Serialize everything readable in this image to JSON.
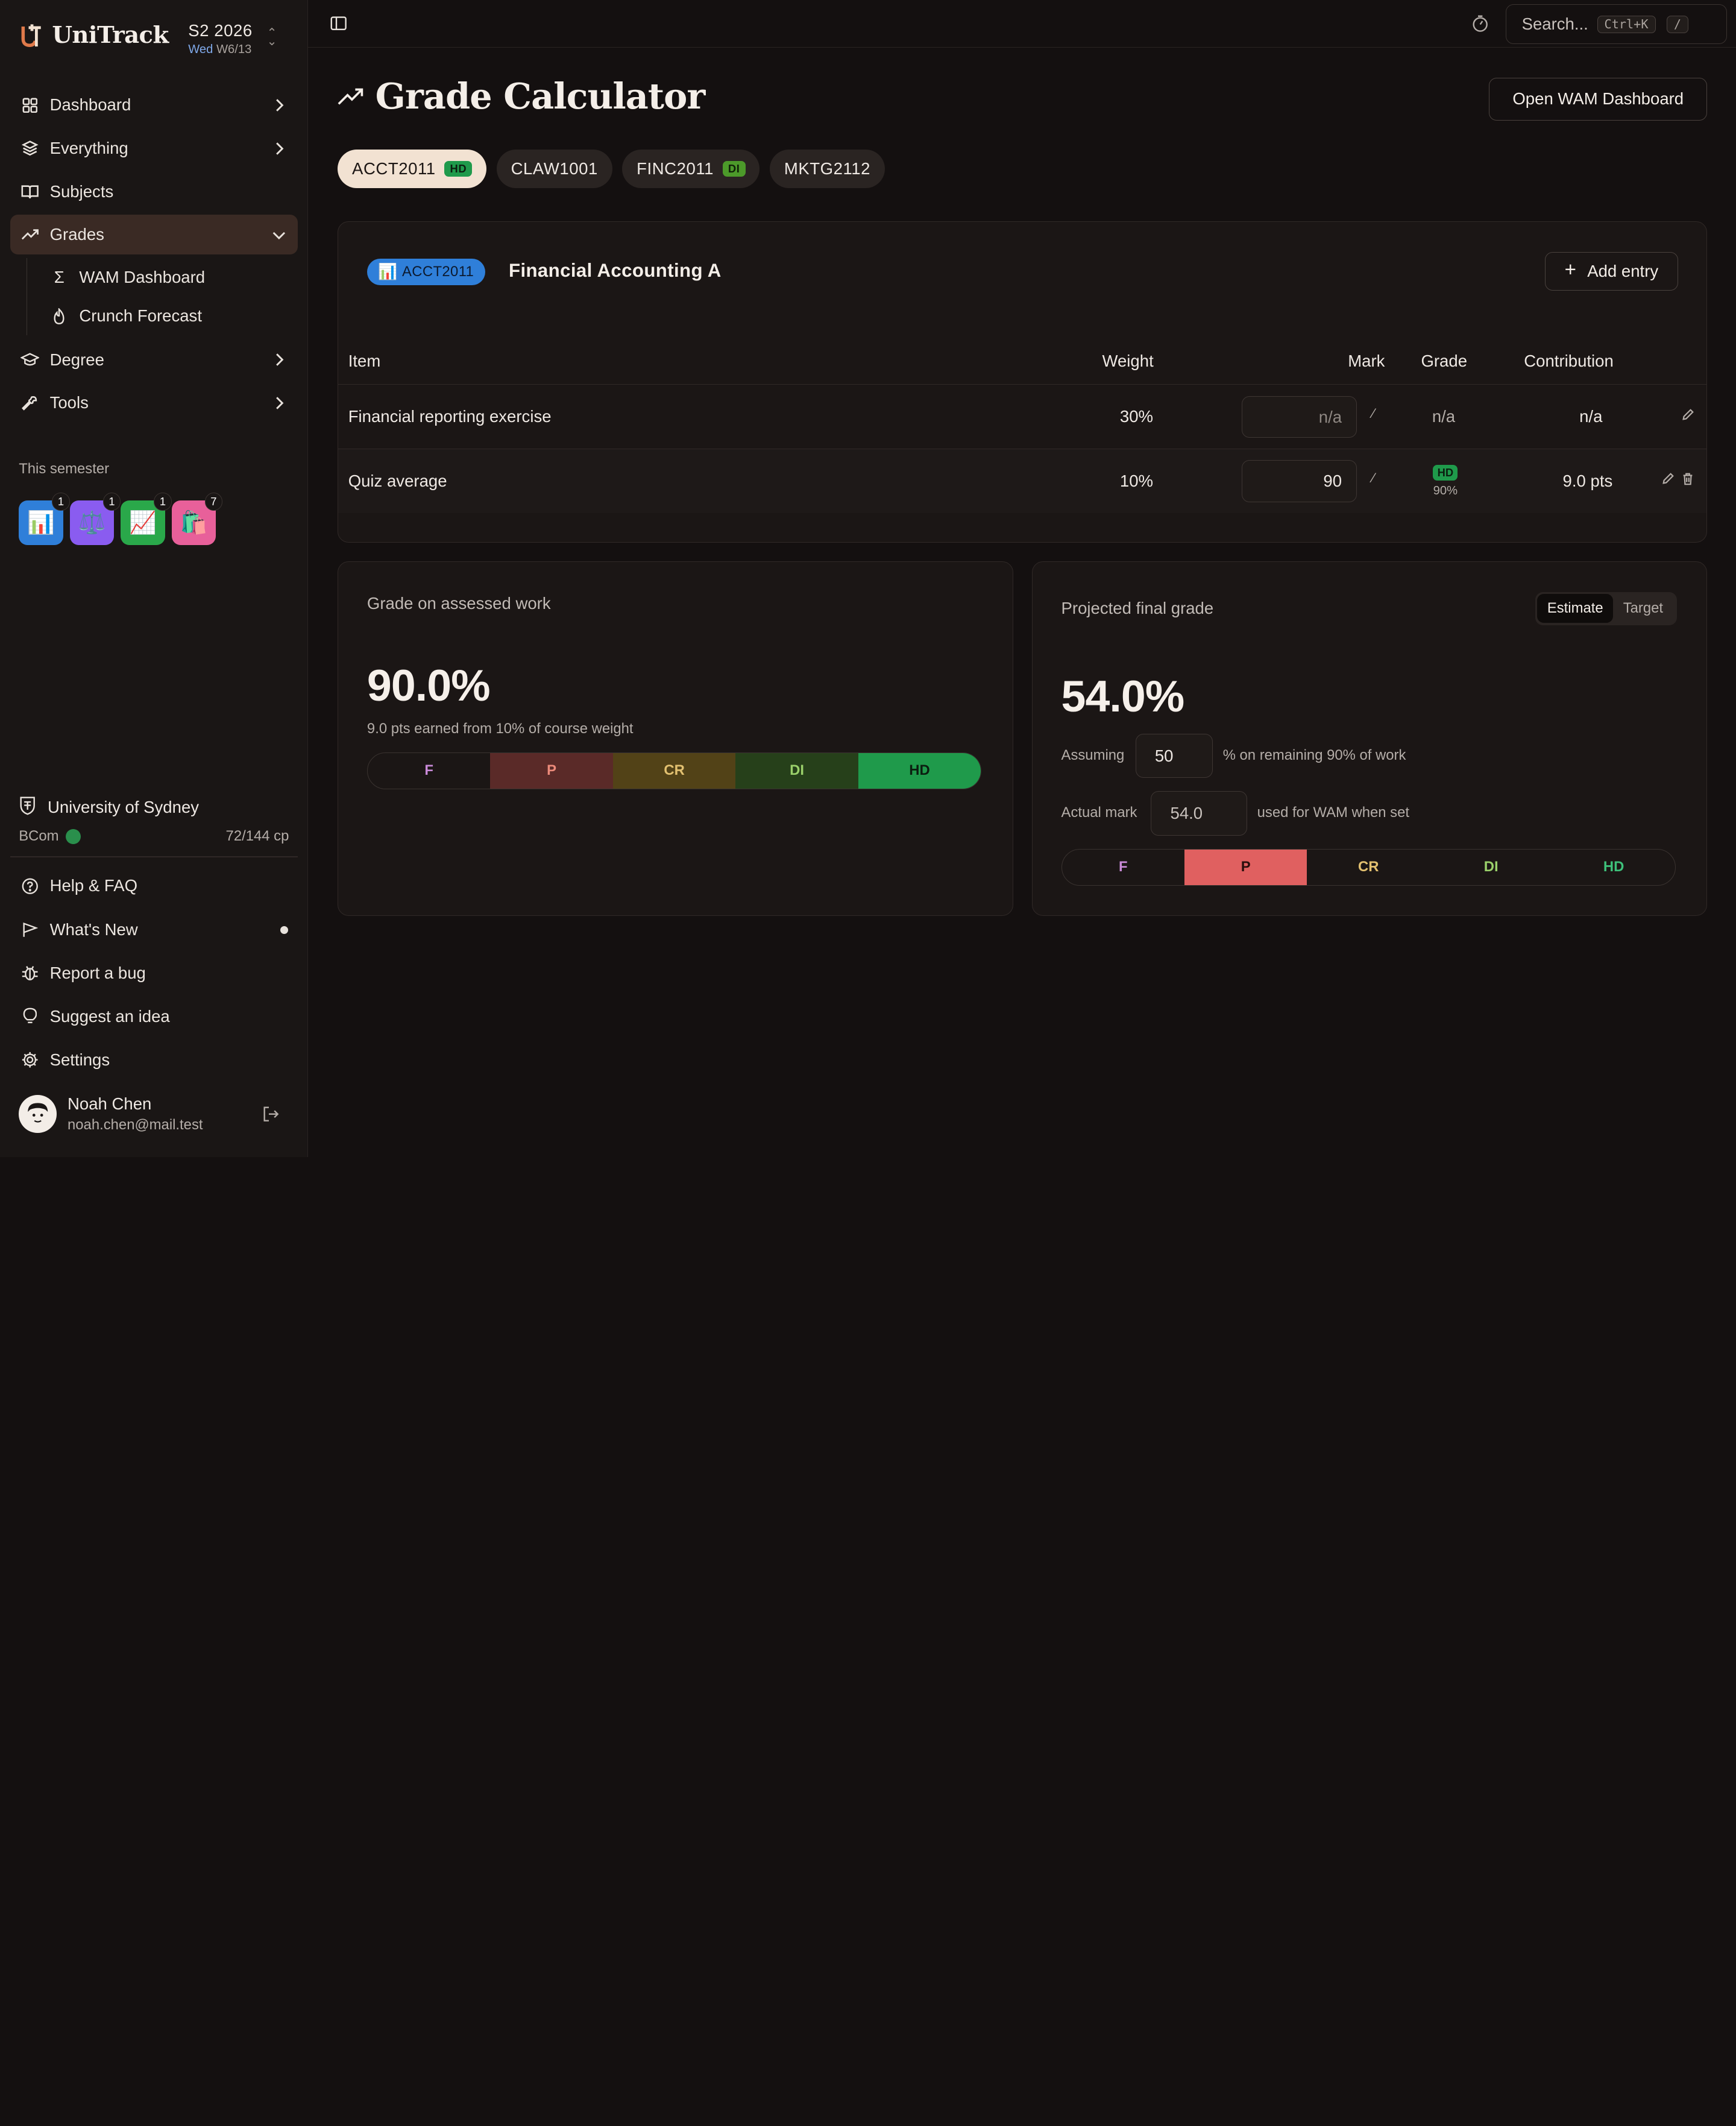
{
  "brand": {
    "name": "UniTrack"
  },
  "term": {
    "title": "S2 2026",
    "day": "Wed",
    "week": "W6/13"
  },
  "sidebar": {
    "nav": [
      {
        "label": "Dashboard"
      },
      {
        "label": "Everything"
      },
      {
        "label": "Subjects"
      },
      {
        "label": "Grades"
      },
      {
        "label": "Degree"
      },
      {
        "label": "Tools"
      }
    ],
    "grades_sub": [
      {
        "label": "WAM Dashboard"
      },
      {
        "label": "Crunch Forecast"
      }
    ],
    "semester_label": "This semester",
    "semester_icons": [
      {
        "icon": "bar-chart-icon",
        "emoji": "📊",
        "count": "1",
        "color": "#2f7fd9"
      },
      {
        "icon": "scales-icon",
        "emoji": "⚖️",
        "count": "1",
        "color": "#8a5cf0"
      },
      {
        "icon": "line-chart-icon",
        "emoji": "📈",
        "count": "1",
        "color": "#2aa84a"
      },
      {
        "icon": "shopping-bags-icon",
        "emoji": "🛍️",
        "count": "7",
        "color": "#e8609a"
      }
    ],
    "university": {
      "name": "University of Sydney",
      "degree": "BCom",
      "credit": "72/144 cp"
    },
    "footer": [
      {
        "label": "Help & FAQ"
      },
      {
        "label": "What's New"
      },
      {
        "label": "Report a bug"
      },
      {
        "label": "Suggest an idea"
      },
      {
        "label": "Settings"
      }
    ],
    "user": {
      "name": "Noah Chen",
      "email": "noah.chen@mail.test"
    }
  },
  "topbar": {
    "search_placeholder": "Search...",
    "shortcut": "Ctrl+K",
    "slash": "/"
  },
  "page": {
    "title": "Grade Calculator",
    "open_wam_label": "Open WAM Dashboard"
  },
  "tabs": [
    {
      "code": "ACCT2011",
      "badge": "HD"
    },
    {
      "code": "CLAW1001",
      "badge": ""
    },
    {
      "code": "FINC2011",
      "badge": "DI"
    },
    {
      "code": "MKTG2112",
      "badge": ""
    }
  ],
  "subject": {
    "emoji": "📊",
    "code": "ACCT2011",
    "name": "Financial Accounting A",
    "add_entry_label": "Add entry",
    "columns": {
      "item": "Item",
      "weight": "Weight",
      "mark": "Mark",
      "grade": "Grade",
      "contribution": "Contribution"
    },
    "rows": [
      {
        "item": "Financial reporting exercise",
        "weight": "30%",
        "mark": "",
        "mark_placeholder": "n/a",
        "grade": "n/a",
        "contribution": "n/a"
      },
      {
        "item": "Quiz average",
        "weight": "10%",
        "mark": "90",
        "grade_badge": "HD",
        "grade_pct": "90%",
        "contribution": "9.0 pts"
      }
    ],
    "frac_symbol": "⁄"
  },
  "assessed": {
    "label": "Grade on assessed work",
    "value": "90.0%",
    "note": "9.0 pts earned from 10% of course weight",
    "active_band": "HD"
  },
  "projected": {
    "label": "Projected final grade",
    "toggle": [
      "Estimate",
      "Target"
    ],
    "toggle_selected": "Estimate",
    "value": "54.0%",
    "assuming_label": "Assuming",
    "assuming_value": "50",
    "assuming_suffix": "% on remaining 90% of work",
    "actual_label": "Actual mark",
    "actual_value": "54.0",
    "actual_suffix": "used for WAM when set",
    "active_band": "P"
  },
  "bands": [
    "F",
    "P",
    "CR",
    "DI",
    "HD"
  ],
  "colors": {
    "accent": "#f2e2d2",
    "hd": "#1f9a4b",
    "di": "#4c9a2a",
    "chip_blue": "#2f7fd9",
    "band_f_text": "#c98ad8",
    "band_p_bg": "#5a2a28",
    "band_p_active": "#e06060",
    "band_cr_bg": "#524217",
    "band_di_bg": "#26401a",
    "band_hd_active": "#1f9a4b"
  }
}
